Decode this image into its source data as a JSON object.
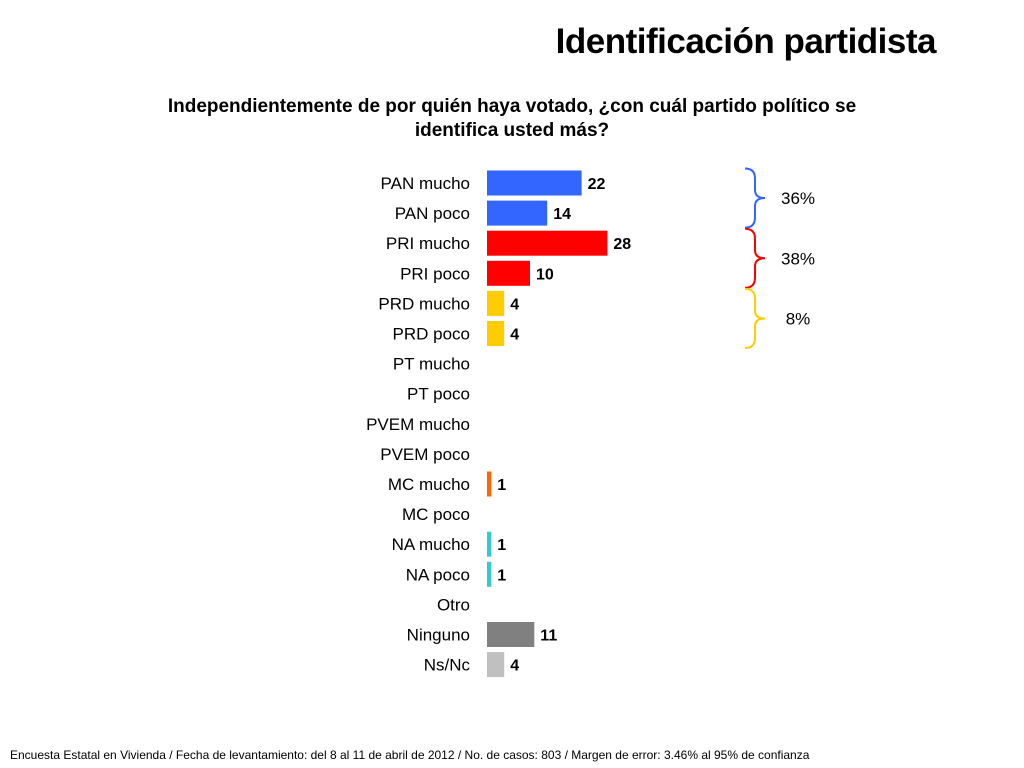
{
  "page": {
    "title": "Identificación partidista",
    "question": "Independientemente de por quién haya votado, ¿con cuál partido político se identifica usted más?",
    "footer": "Encuesta Estatal en Vivienda / Fecha de levantamiento: del  8 al 11 de abril de 2012 / No. de casos: 803 / Margen de error: 3.46% al 95% de confianza"
  },
  "chart_data": {
    "type": "bar",
    "orientation": "horizontal",
    "title": "Identificación partidista",
    "subtitle": "Independientemente de por quién haya votado, ¿con cuál partido político se identifica usted más?",
    "xlabel": "",
    "ylabel": "",
    "grid": false,
    "categories": [
      "PAN mucho",
      "PAN poco",
      "PRI mucho",
      "PRI poco",
      "PRD mucho",
      "PRD poco",
      "PT mucho",
      "PT poco",
      "PVEM mucho",
      "PVEM poco",
      "MC mucho",
      "MC poco",
      "NA mucho",
      "NA poco",
      "Otro",
      "Ninguno",
      "Ns/Nc"
    ],
    "values": [
      22,
      14,
      28,
      10,
      4,
      4,
      null,
      null,
      null,
      null,
      1,
      null,
      1,
      1,
      null,
      11,
      4
    ],
    "colors": [
      "#3366ff",
      "#3366ff",
      "#ff0000",
      "#ff0000",
      "#ffcc00",
      "#ffcc00",
      "#ffcc00",
      "#ffcc00",
      "#ffcc00",
      "#ffcc00",
      "#ff6600",
      "#ff6600",
      "#33cccc",
      "#33cccc",
      "#808080",
      "#808080",
      "#c0c0c0"
    ],
    "xlim": [
      0,
      28
    ],
    "groups": [
      {
        "label": "36%",
        "first": 0,
        "last": 1,
        "color": "#3366ff"
      },
      {
        "label": "38%",
        "first": 2,
        "last": 3,
        "color": "#ff0000"
      },
      {
        "label": "8%",
        "first": 4,
        "last": 5,
        "color": "#ffcc00"
      }
    ]
  }
}
